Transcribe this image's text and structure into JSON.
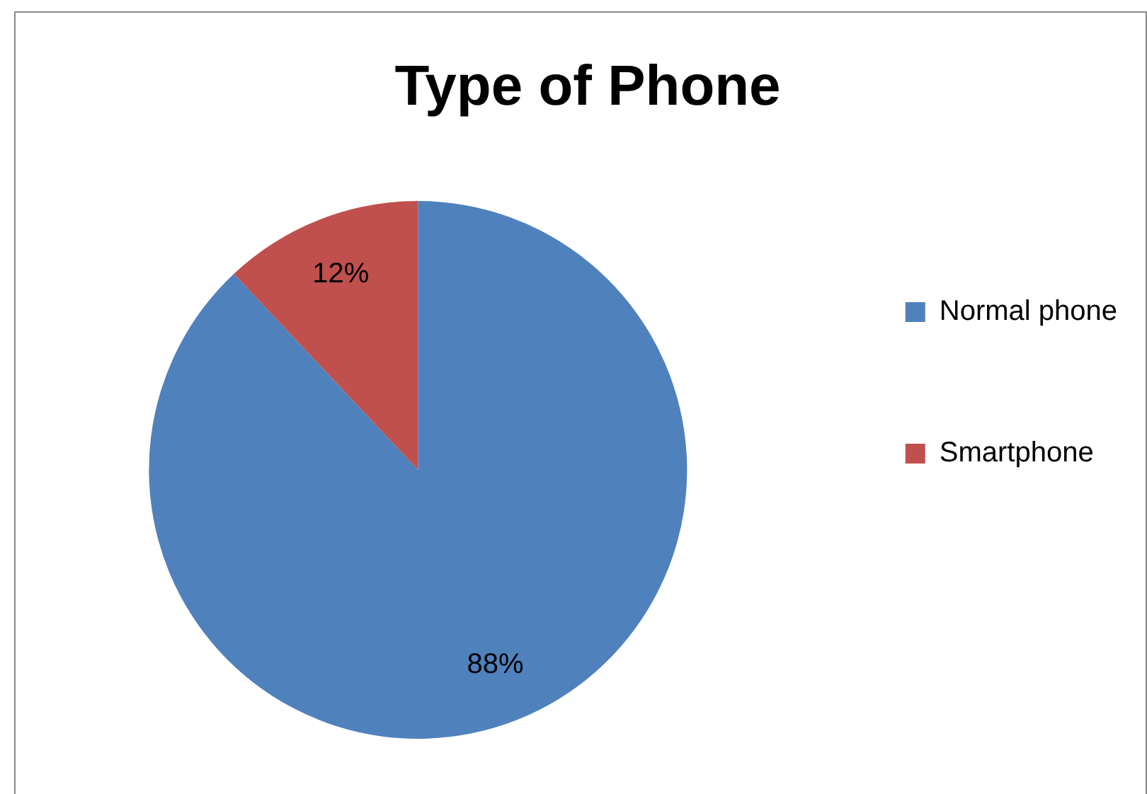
{
  "chart_data": {
    "type": "pie",
    "title": "Type of Phone",
    "categories": [
      "Normal phone",
      "Smartphone"
    ],
    "values": [
      88,
      12
    ],
    "colors": [
      "#4f81bd",
      "#c0504d"
    ],
    "legend": "right",
    "value_labels": [
      "88%",
      "12%"
    ]
  }
}
